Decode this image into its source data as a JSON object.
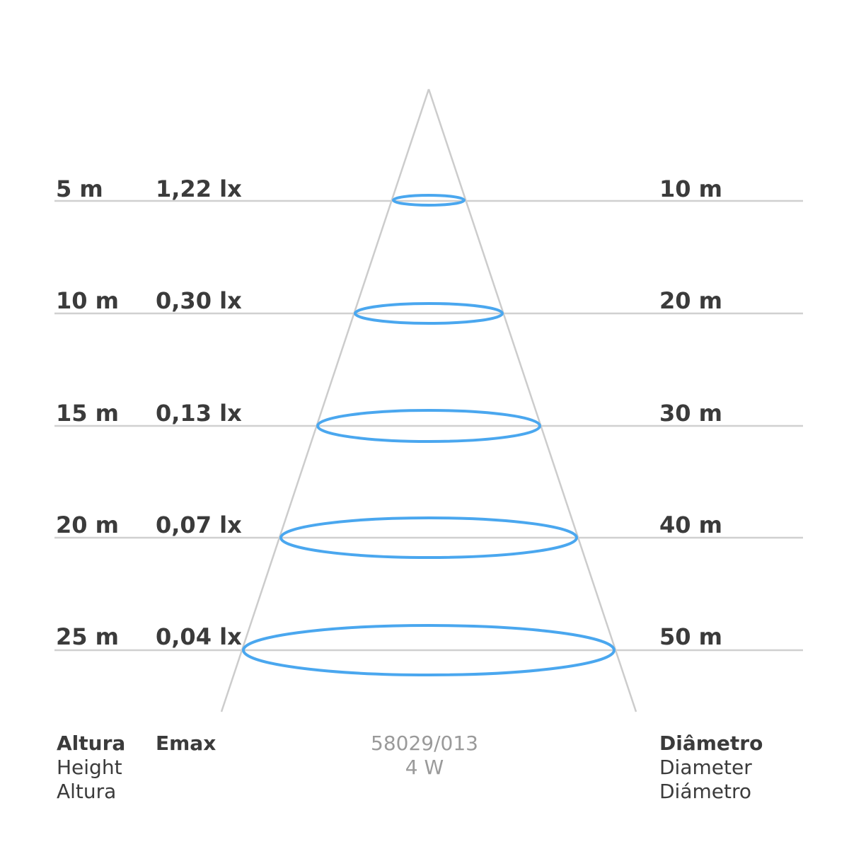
{
  "rows": [
    {
      "height": "5 m",
      "emax": "1,22 lx",
      "diameter": "10 m"
    },
    {
      "height": "10 m",
      "emax": "0,30 lx",
      "diameter": "20 m"
    },
    {
      "height": "15 m",
      "emax": "0,13 lx",
      "diameter": "30 m"
    },
    {
      "height": "20 m",
      "emax": "0,07 lx",
      "diameter": "40 m"
    },
    {
      "height": "25 m",
      "emax": "0,04 lx",
      "diameter": "50 m"
    }
  ],
  "footer": {
    "height": {
      "title": "Altura",
      "line1": "Height",
      "line2": "Altura"
    },
    "emax": {
      "title": "Emax"
    },
    "diameter": {
      "title": "Diâmetro",
      "line1": "Diameter",
      "line2": "Diámetro"
    },
    "product": {
      "code": "58029/013",
      "power": "4 W"
    }
  },
  "colors": {
    "text": "#3b3b3b",
    "muted_text": "#9a9a9a",
    "grid_line": "#d0d0d0",
    "beam_line": "#cccccc",
    "ellipse": "#4aa7ef"
  }
}
